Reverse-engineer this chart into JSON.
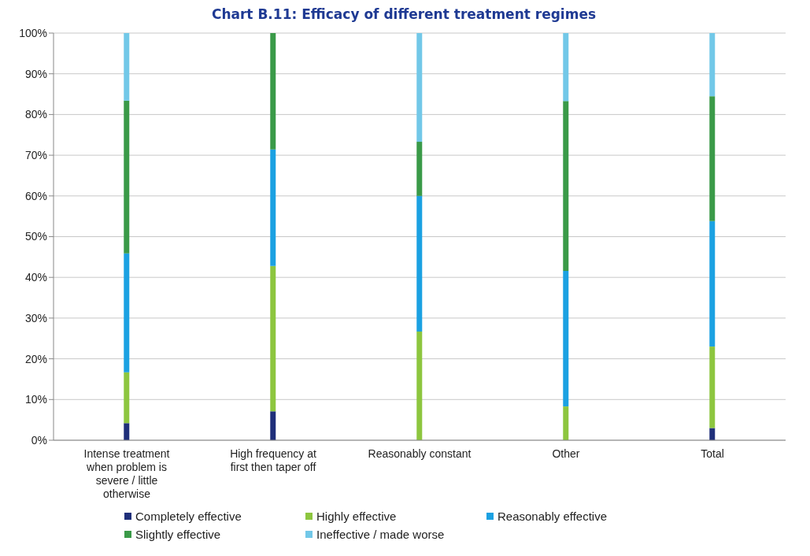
{
  "chart_data": {
    "type": "bar",
    "stacked": true,
    "title": "Chart B.11: Efficacy of different treatment regimes",
    "categories": [
      "Intense treatment when problem is severe / little otherwise",
      "High frequency at first then taper off",
      "Reasonably constant",
      "Other",
      "Total"
    ],
    "series": [
      {
        "name": "Completely effective",
        "color": "#1f2f7a",
        "values": [
          4.2,
          7.1,
          0,
          0,
          3
        ]
      },
      {
        "name": "Highly effective",
        "color": "#8dc63f",
        "values": [
          12.5,
          35.7,
          26.7,
          8.3,
          20
        ]
      },
      {
        "name": "Reasonably effective",
        "color": "#1ba1e2",
        "values": [
          29.2,
          28.6,
          33.3,
          33.3,
          30.8
        ]
      },
      {
        "name": "Slightly effective",
        "color": "#3a9a48",
        "values": [
          37.5,
          28.6,
          13.3,
          41.7,
          30.7
        ]
      },
      {
        "name": "Ineffective / made worse",
        "color": "#72c8e8",
        "values": [
          16.7,
          0,
          26.7,
          16.7,
          15.5
        ]
      }
    ],
    "ylim": [
      0,
      100
    ],
    "yticks": [
      {
        "value": 0,
        "label": "0%"
      },
      {
        "value": 10,
        "label": "10%"
      },
      {
        "value": 20,
        "label": "20%"
      },
      {
        "value": 30,
        "label": "30%"
      },
      {
        "value": 40,
        "label": "40%"
      },
      {
        "value": 50,
        "label": "50%"
      },
      {
        "value": 60,
        "label": "60%"
      },
      {
        "value": 70,
        "label": "70%"
      },
      {
        "value": 80,
        "label": "80%"
      },
      {
        "value": 90,
        "label": "90%"
      },
      {
        "value": 100,
        "label": "100%"
      }
    ],
    "grid": "y",
    "legend": "bottom"
  }
}
